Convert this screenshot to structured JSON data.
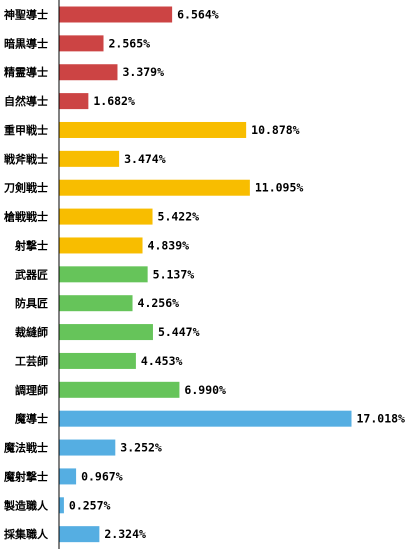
{
  "chart_data": {
    "type": "bar",
    "orientation": "horizontal",
    "categories": [
      "神聖導士",
      "暗黒導士",
      "精霊導士",
      "自然導士",
      "重甲戦士",
      "戦斧戦士",
      "刀剣戦士",
      "槍戦戦士",
      "射撃士",
      "武器匠",
      "防具匠",
      "裁縫師",
      "工芸師",
      "調理師",
      "魔導士",
      "魔法戦士",
      "魔射撃士",
      "製造職人",
      "採集職人"
    ],
    "values": [
      6.564,
      2.565,
      3.379,
      1.682,
      10.878,
      3.474,
      11.095,
      5.422,
      4.839,
      5.137,
      4.256,
      5.447,
      4.453,
      6.99,
      17.018,
      3.252,
      0.967,
      0.257,
      2.324
    ],
    "value_labels": [
      "6.564%",
      "2.565%",
      "3.379%",
      "1.682%",
      "10.878%",
      "3.474%",
      "11.095%",
      "5.422%",
      "4.839%",
      "5.137%",
      "4.256%",
      "5.447%",
      "4.453%",
      "6.990%",
      "17.018%",
      "3.252%",
      "0.967%",
      "0.257%",
      "2.324%"
    ],
    "bar_colors": [
      "#cc4444",
      "#cc4444",
      "#cc4444",
      "#cc4444",
      "#f8bd00",
      "#f8bd00",
      "#f8bd00",
      "#f8bd00",
      "#f8bd00",
      "#66c45a",
      "#66c45a",
      "#66c45a",
      "#66c45a",
      "#66c45a",
      "#55aee2",
      "#55aee2",
      "#55aee2",
      "#55aee2",
      "#55aee2"
    ],
    "xlim": [
      0,
      17.018
    ],
    "grid": false,
    "legend": "none"
  }
}
